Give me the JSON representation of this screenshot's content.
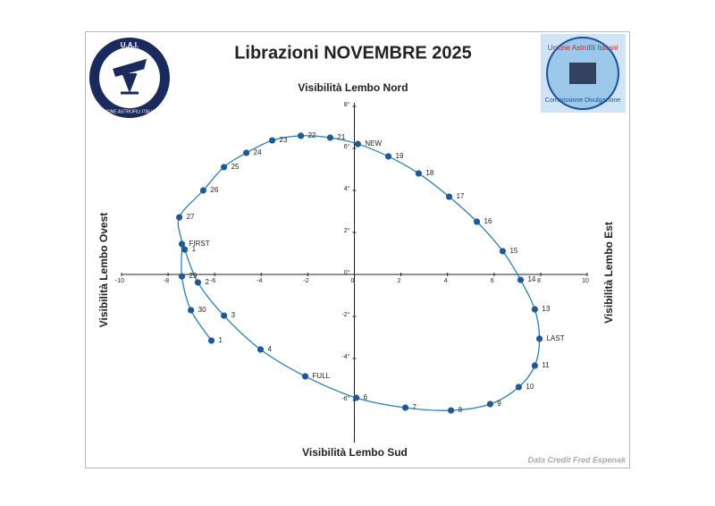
{
  "chart_data": {
    "type": "line",
    "title": "Librazioni NOVEMBRE 2025",
    "top_label": "Visibilità Lembo Nord",
    "bottom_label": "Visibilità Lembo Sud",
    "left_label": "Visibilità Lembo  Ovest",
    "right_label": "Visibilità Lembo  Est",
    "credit": "Data Credit Fred Espenak",
    "logo_left": {
      "title": "U.A.I.",
      "ring": "UNIONE ASTROFILI ITALIANI"
    },
    "logo_right": {
      "top": "Unione Astrofili Italiani",
      "bottom": "Commissione Divulgazione"
    },
    "labels": [
      "1",
      "2",
      "3",
      "4",
      "FULL",
      "6",
      "7",
      "8",
      "9",
      "10",
      "11",
      "LAST",
      "13",
      "14",
      "15",
      "16",
      "17",
      "18",
      "19",
      "NEW",
      "21",
      "22",
      "23",
      "24",
      "25",
      "26",
      "27",
      "FIRST",
      "29",
      "30",
      "1"
    ],
    "x": [
      -7.29,
      -6.72,
      -5.6,
      -4.03,
      -2.11,
      0.08,
      2.19,
      4.15,
      5.83,
      7.06,
      7.75,
      7.95,
      7.75,
      7.14,
      6.37,
      5.26,
      4.07,
      2.76,
      1.46,
      0.15,
      -1.04,
      -2.3,
      -3.53,
      -4.64,
      -5.6,
      -6.49,
      -7.52,
      -7.41,
      -7.41,
      -7.02,
      -6.14
    ],
    "y": [
      1.19,
      -0.38,
      -1.96,
      -3.57,
      -4.85,
      -5.87,
      -6.34,
      -6.47,
      -6.17,
      -5.36,
      -4.34,
      -3.06,
      -1.66,
      -0.26,
      1.11,
      2.51,
      3.7,
      4.81,
      5.62,
      6.21,
      6.51,
      6.6,
      6.38,
      5.79,
      5.11,
      4.0,
      2.72,
      1.45,
      -0.09,
      -1.7,
      -3.15
    ],
    "color": "#1f5a96",
    "line_color": "#2b7fbf",
    "xlim": [
      -10,
      10
    ],
    "xticks": [
      -10,
      -8,
      -6,
      -4,
      -2,
      0,
      2,
      4,
      6,
      8,
      10
    ],
    "ylim": [
      -8,
      8
    ],
    "yticks": [
      {
        "value": 8,
        "label": "8°"
      },
      {
        "value": 6,
        "label": "6°"
      },
      {
        "value": 4,
        "label": "4°"
      },
      {
        "value": 2,
        "label": "2°"
      },
      {
        "value": 0,
        "label": "0°"
      },
      {
        "value": -2,
        "label": "-2°"
      },
      {
        "value": -4,
        "label": "-4°"
      },
      {
        "value": -6,
        "label": "-6°"
      }
    ]
  }
}
